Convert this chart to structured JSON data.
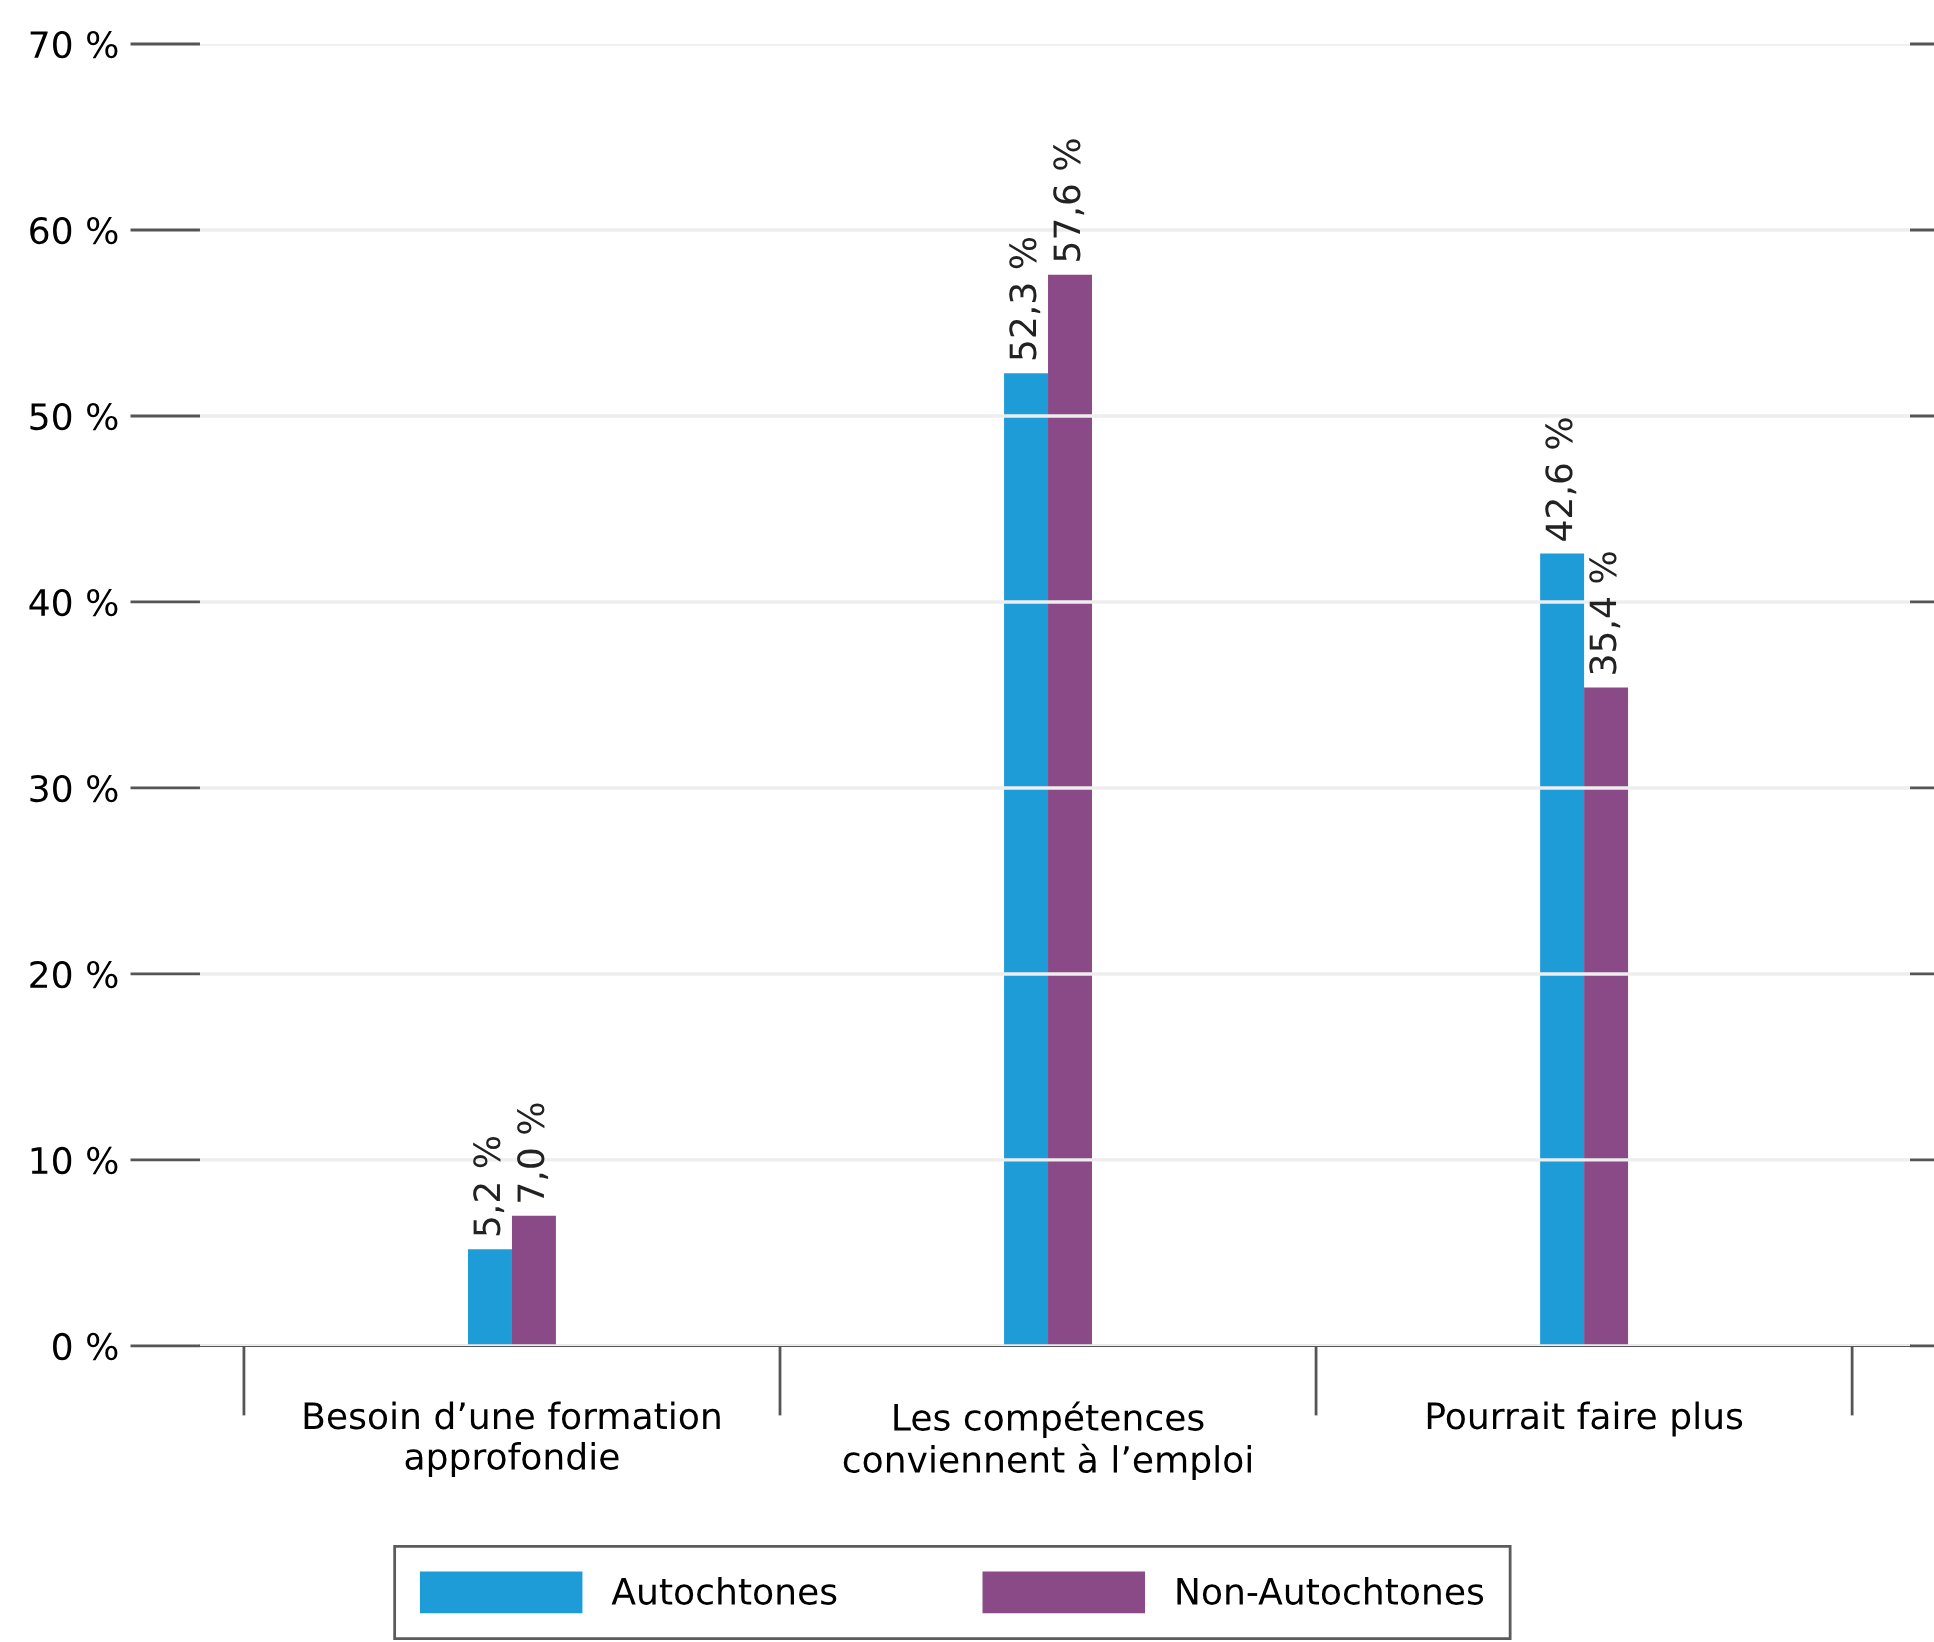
{
  "chart_data": {
    "type": "bar",
    "categories": [
      "Besoin d’une formation\napprofondie",
      "Les compétences\nconviennent à l’emploi",
      "Pourrait faire plus"
    ],
    "series": [
      {
        "name": "Autochtones",
        "color": "#1e9cd7",
        "values": [
          5.2,
          52.3,
          42.6
        ],
        "value_labels": [
          "5,2 %",
          "52,3 %",
          "42,6 %"
        ]
      },
      {
        "name": "Non-Autochtones",
        "color": "#8a4a88",
        "values": [
          7.0,
          57.6,
          35.4
        ],
        "value_labels": [
          "7,0 %",
          "57,6 %",
          "35,4 %"
        ]
      }
    ],
    "ylim": [
      0,
      70
    ],
    "yticks": [
      {
        "value": 0,
        "label": "0 %"
      },
      {
        "value": 10,
        "label": "10 %"
      },
      {
        "value": 20,
        "label": "20 %"
      },
      {
        "value": 30,
        "label": "30 %"
      },
      {
        "value": 40,
        "label": "40 %"
      },
      {
        "value": 50,
        "label": "50 %"
      },
      {
        "value": 60,
        "label": "60 %"
      },
      {
        "value": 70,
        "label": "70 %"
      }
    ],
    "grid": "y",
    "legend": "bottom"
  }
}
